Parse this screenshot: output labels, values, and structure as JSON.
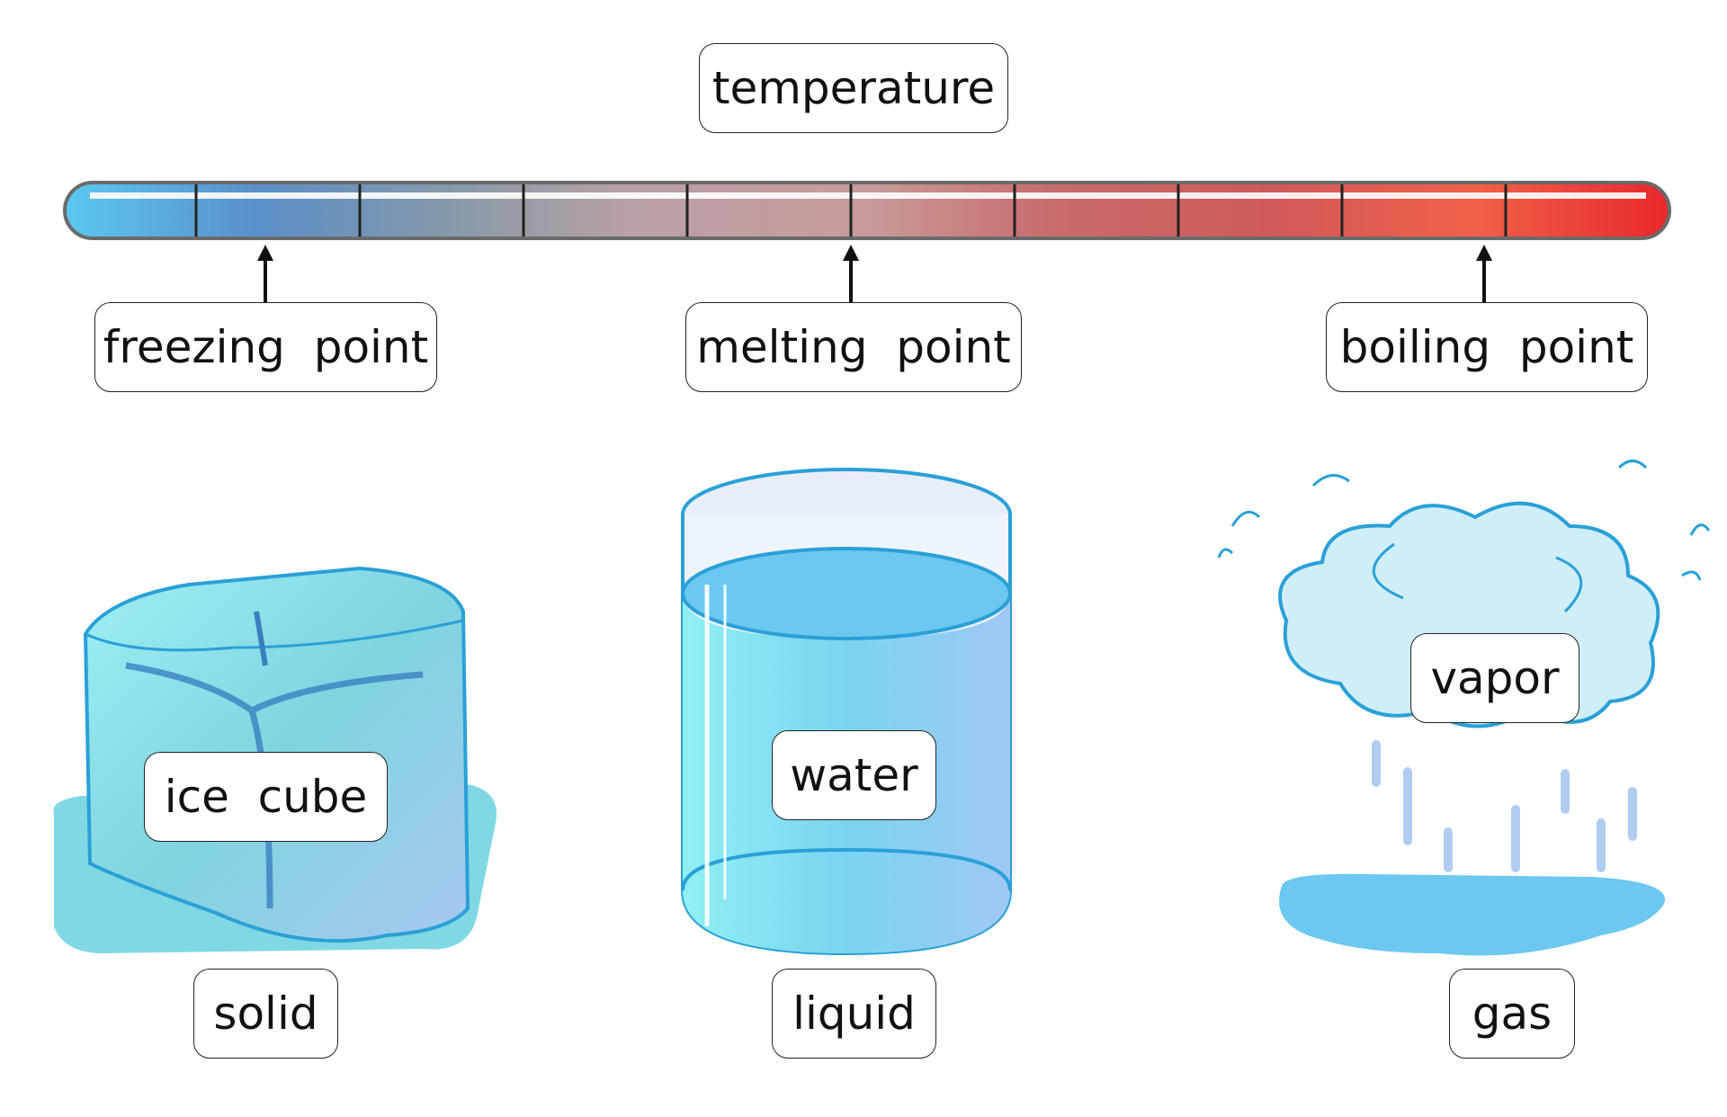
{
  "labels": {
    "temperature": "temperature",
    "freezing_point": "freezing  point",
    "melting_point": "melting  point",
    "boiling_point": "boiling  point",
    "ice_cube": "ice  cube",
    "water": "water",
    "vapor": "vapor",
    "solid": "solid",
    "liquid": "liquid",
    "gas": "gas"
  },
  "colors": {
    "cold": "#5bc8f0",
    "mid": "#c89a9a",
    "hot": "#e8282e",
    "ice": "#7fe0e8",
    "water": "#7ad4f0",
    "vapor": "#bfe8f4"
  },
  "icons": [
    "thermometer-bar",
    "ice-cube-icon",
    "water-glass-icon",
    "vapor-cloud-icon"
  ]
}
